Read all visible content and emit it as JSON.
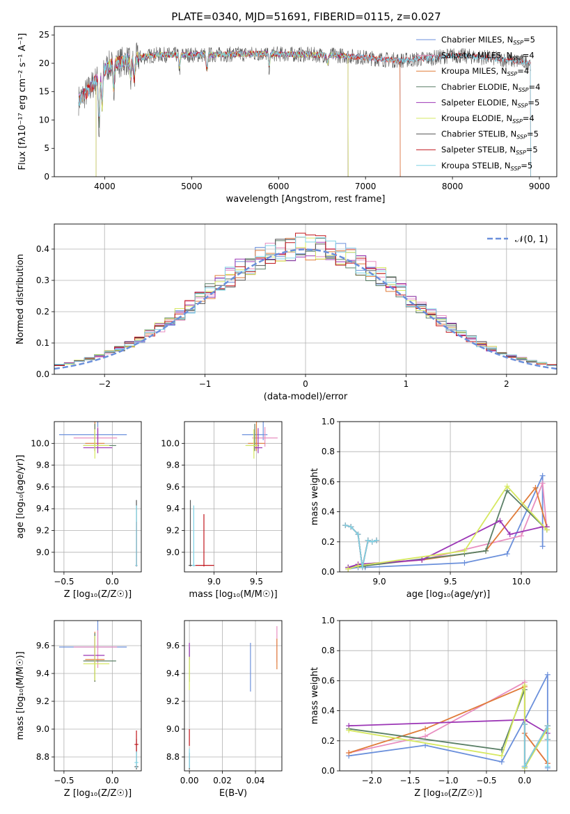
{
  "title": "PLATE=0340, MJD=51691, FIBERID=0115, z=0.027",
  "colors": [
    "#6a8fdb",
    "#e88ec0",
    "#e07b39",
    "#5a7f66",
    "#9b35b5",
    "#d6e860",
    "#555555",
    "#c0141a",
    "#7fd3e6"
  ],
  "chart_data": [
    {
      "type": "line",
      "name": "spectrum",
      "xlabel": "wavelength [Angstrom, rest frame]",
      "ylabel": "Flux [fλ10⁻¹⁷ erg cm⁻² s⁻¹ A⁻¹]",
      "xlim": [
        3420,
        9200
      ],
      "ylim": [
        0,
        26.5
      ],
      "xticks": [
        4000,
        5000,
        6000,
        7000,
        8000,
        9000
      ],
      "yticks": [
        0,
        5,
        10,
        15,
        20,
        25
      ],
      "legend_position": "top-right",
      "legend": [
        {
          "name": "Chabrier MILES",
          "n": "5"
        },
        {
          "name": "Salpeter MILES",
          "n": "4"
        },
        {
          "name": "Kroupa MILES",
          "n": "4"
        },
        {
          "name": "Chabrier ELODIE",
          "n": "4"
        },
        {
          "name": "Salpeter ELODIE",
          "n": "5"
        },
        {
          "name": "Kroupa ELODIE",
          "n": "4"
        },
        {
          "name": "Chabrier STELIB",
          "n": "5"
        },
        {
          "name": "Salpeter STELIB",
          "n": "5"
        },
        {
          "name": "Kroupa STELIB",
          "n": "5"
        }
      ],
      "spectrum_continuum": {
        "x": [
          3700,
          3800,
          3900,
          4000,
          4100,
          4200,
          4400,
          4600,
          4800,
          5000,
          5200,
          5500,
          5800,
          6100,
          6400,
          6700,
          7000,
          7200,
          7400,
          7600,
          7800,
          8000,
          8400,
          8800,
          9000
        ],
        "y": [
          13.5,
          15.0,
          17.0,
          19.0,
          20.0,
          20.3,
          21.0,
          21.5,
          21.5,
          21.5,
          21.5,
          21.6,
          21.7,
          21.6,
          21.5,
          21.4,
          21.0,
          20.7,
          20.5,
          20.7,
          21.0,
          21.4,
          21.0,
          20.3,
          19.8
        ]
      },
      "model_coverage": {
        "MILES_end": 7400,
        "ELODIE_start": 3900,
        "ELODIE_end": 6800,
        "STELIB_end": 8900
      },
      "absorption_features": [
        {
          "x": 3935,
          "depth": 8.0
        },
        {
          "x": 3970,
          "depth": 6.0
        },
        {
          "x": 4102,
          "depth": 4.0
        },
        {
          "x": 4300,
          "depth": 3.0
        },
        {
          "x": 4340,
          "depth": 3.5
        },
        {
          "x": 4861,
          "depth": 2.0
        },
        {
          "x": 5175,
          "depth": 2.5
        },
        {
          "x": 5893,
          "depth": 2.0
        },
        {
          "x": 6563,
          "depth": 1.5
        }
      ]
    },
    {
      "type": "line",
      "name": "residual_histogram",
      "xlabel": "(data-model)/error",
      "ylabel": "Normed distribution",
      "xlim": [
        -2.5,
        2.5
      ],
      "ylim": [
        0,
        0.48
      ],
      "xticks": [
        -2,
        -1,
        0,
        1,
        2
      ],
      "yticks": [
        0.0,
        0.1,
        0.2,
        0.3,
        0.4
      ],
      "legend_position": "top-right",
      "legend": [
        "𝒩(0, 1)"
      ],
      "bin_width": 0.1,
      "bin_start": -2.5,
      "note_series_values_from_model": "normal"
    },
    {
      "type": "scatter",
      "name": "age_vs_Z",
      "xlabel": "Z [log₁₀(Z/Z☉)]",
      "ylabel": "age  [log₁₀(age/yr)]",
      "xlim": [
        -0.6,
        0.3
      ],
      "ylim": [
        8.82,
        10.2
      ],
      "xticks": [
        -0.5,
        0.0
      ],
      "yticks": [
        9.0,
        9.2,
        9.4,
        9.6,
        9.8,
        10.0
      ],
      "points": [
        {
          "c": 0,
          "x": -0.15,
          "y": 10.08,
          "xe": [
            0.4,
            0.3
          ],
          "ye": [
            0.05,
            0.15
          ]
        },
        {
          "c": 1,
          "x": -0.15,
          "y": 10.05,
          "xe": [
            0.25,
            0.2
          ],
          "ye": [
            0.08,
            0.1
          ]
        },
        {
          "c": 2,
          "x": -0.18,
          "y": 10.0,
          "xe": [
            0.1,
            0.1
          ],
          "ye": [
            0.07,
            0.2
          ]
        },
        {
          "c": 3,
          "x": -0.18,
          "y": 9.98,
          "xe": [
            0.12,
            0.22
          ],
          "ye": [
            0.05,
            0.2
          ]
        },
        {
          "c": 4,
          "x": -0.15,
          "y": 9.96,
          "xe": [
            0.15,
            0.15
          ],
          "ye": [
            0.05,
            0.18
          ]
        },
        {
          "c": 5,
          "x": -0.18,
          "y": 9.98,
          "xe": [
            0.12,
            0.15
          ],
          "ye": [
            0.12,
            0.15
          ]
        },
        {
          "c": 6,
          "x": 0.25,
          "y": 8.88,
          "xe": [
            0.01,
            0.01
          ],
          "ye": [
            0.01,
            0.6
          ]
        },
        {
          "c": 7,
          "x": 0.25,
          "y": 8.88,
          "xe": [
            0.01,
            0.01
          ],
          "ye": [
            0.01,
            0.4
          ]
        },
        {
          "c": 8,
          "x": 0.25,
          "y": 8.88,
          "xe": [
            0.01,
            0.01
          ],
          "ye": [
            0.01,
            0.55
          ]
        }
      ]
    },
    {
      "type": "scatter",
      "name": "age_vs_mass",
      "xlabel": "mass [log₁₀(M/M☉)]",
      "ylabel": "",
      "xlim": [
        8.65,
        9.8
      ],
      "ylim": [
        8.82,
        10.2
      ],
      "xticks": [
        9.0,
        9.5
      ],
      "yticks": [
        9.0,
        9.2,
        9.4,
        9.6,
        9.8,
        10.0
      ],
      "points": [
        {
          "c": 0,
          "x": 9.58,
          "y": 10.08,
          "xe": [
            0.25,
            0.05
          ],
          "ye": [
            0.05,
            0.15
          ]
        },
        {
          "c": 1,
          "x": 9.6,
          "y": 10.05,
          "xe": [
            0.15,
            0.15
          ],
          "ye": [
            0.08,
            0.1
          ]
        },
        {
          "c": 2,
          "x": 9.5,
          "y": 10.0,
          "xe": [
            0.1,
            0.1
          ],
          "ye": [
            0.07,
            0.2
          ]
        },
        {
          "c": 3,
          "x": 9.48,
          "y": 9.98,
          "xe": [
            0.1,
            0.05
          ],
          "ye": [
            0.05,
            0.2
          ]
        },
        {
          "c": 4,
          "x": 9.52,
          "y": 9.96,
          "xe": [
            0.05,
            0.05
          ],
          "ye": [
            0.05,
            0.18
          ]
        },
        {
          "c": 5,
          "x": 9.47,
          "y": 9.98,
          "xe": [
            0.1,
            0.05
          ],
          "ye": [
            0.12,
            0.15
          ]
        },
        {
          "c": 6,
          "x": 8.72,
          "y": 8.88,
          "xe": [
            0.02,
            0.02
          ],
          "ye": [
            0.01,
            0.6
          ]
        },
        {
          "c": 7,
          "x": 8.88,
          "y": 8.88,
          "xe": [
            0.12,
            0.12
          ],
          "ye": [
            0.01,
            0.47
          ]
        },
        {
          "c": 8,
          "x": 8.76,
          "y": 8.88,
          "xe": [
            0.02,
            0.02
          ],
          "ye": [
            0.01,
            0.55
          ]
        }
      ]
    },
    {
      "type": "line",
      "name": "massweight_vs_age",
      "xlabel": "age  [log₁₀(age/yr)]",
      "ylabel": "mass weight",
      "xlim": [
        8.72,
        10.25
      ],
      "ylim": [
        0,
        1
      ],
      "xticks": [
        9.0,
        9.5,
        10.0
      ],
      "yticks": [
        0.0,
        0.2,
        0.4,
        0.6,
        0.8,
        1.0
      ],
      "series": [
        {
          "c": 0,
          "x": [
            8.78,
            8.85,
            8.9,
            9.6,
            9.9,
            10.15,
            10.15
          ],
          "y": [
            0.02,
            0.03,
            0.03,
            0.06,
            0.12,
            0.64,
            0.17
          ]
        },
        {
          "c": 1,
          "x": [
            8.78,
            8.85,
            9.3,
            10.0,
            10.15,
            10.18
          ],
          "y": [
            0.03,
            0.04,
            0.08,
            0.24,
            0.59,
            0.28
          ]
        },
        {
          "c": 2,
          "x": [
            8.78,
            8.85,
            9.3,
            9.75,
            10.1,
            10.18
          ],
          "y": [
            0.02,
            0.05,
            0.08,
            0.14,
            0.56,
            0.3
          ]
        },
        {
          "c": 3,
          "x": [
            8.78,
            8.9,
            9.6,
            9.75,
            9.9,
            10.18
          ],
          "y": [
            0.03,
            0.04,
            0.12,
            0.14,
            0.54,
            0.28
          ]
        },
        {
          "c": 4,
          "x": [
            8.78,
            8.85,
            9.3,
            9.85,
            9.92,
            10.15,
            10.18
          ],
          "y": [
            0.03,
            0.05,
            0.08,
            0.34,
            0.25,
            0.3,
            0.3
          ]
        },
        {
          "c": 5,
          "x": [
            8.78,
            8.85,
            9.6,
            9.9,
            10.18
          ],
          "y": [
            0.02,
            0.04,
            0.14,
            0.57,
            0.28
          ]
        },
        {
          "c": 6,
          "x": [
            8.76,
            8.8,
            8.85,
            8.88,
            8.92,
            8.95,
            8.98
          ],
          "y": [
            0.31,
            0.3,
            0.25,
            0.03,
            0.21,
            0.2,
            0.21
          ]
        },
        {
          "c": 7,
          "x": [
            8.76,
            8.8,
            8.85,
            8.88,
            8.92,
            8.95,
            8.98
          ],
          "y": [
            0.31,
            0.3,
            0.25,
            0.03,
            0.21,
            0.2,
            0.21
          ]
        },
        {
          "c": 8,
          "x": [
            8.76,
            8.8,
            8.85,
            8.88,
            8.92,
            8.95,
            8.98
          ],
          "y": [
            0.31,
            0.3,
            0.25,
            0.03,
            0.21,
            0.2,
            0.21
          ]
        }
      ]
    },
    {
      "type": "scatter",
      "name": "mass_vs_Z",
      "xlabel": "Z [log₁₀(Z/Z☉)]",
      "ylabel": "mass [log₁₀(M/M☉)]",
      "xlim": [
        -0.6,
        0.3
      ],
      "ylim": [
        8.7,
        9.78
      ],
      "xticks": [
        -0.5,
        0.0
      ],
      "yticks": [
        8.8,
        9.0,
        9.2,
        9.4,
        9.6
      ],
      "points": [
        {
          "c": 0,
          "x": -0.15,
          "y": 9.59,
          "xe": [
            0.4,
            0.3
          ],
          "ye": [
            0.02,
            0.32
          ]
        },
        {
          "c": 1,
          "x": -0.15,
          "y": 9.59,
          "xe": [
            0.25,
            0.2
          ],
          "ye": [
            0.15,
            0.12
          ]
        },
        {
          "c": 2,
          "x": -0.18,
          "y": 9.5,
          "xe": [
            0.1,
            0.1
          ],
          "ye": [
            0.16,
            0.2
          ]
        },
        {
          "c": 3,
          "x": -0.18,
          "y": 9.49,
          "xe": [
            0.12,
            0.22
          ],
          "ye": [
            0.15,
            0.2
          ]
        },
        {
          "c": 4,
          "x": -0.18,
          "y": 9.53,
          "xe": [
            0.12,
            0.1
          ],
          "ye": [
            0.06,
            0.12
          ]
        },
        {
          "c": 5,
          "x": -0.18,
          "y": 9.47,
          "xe": [
            0.12,
            0.15
          ],
          "ye": [
            0.12,
            0.2
          ]
        },
        {
          "c": 6,
          "x": 0.25,
          "y": 8.73,
          "xe": [
            0.02,
            0.02
          ],
          "ye": [
            0.02,
            0.2
          ]
        },
        {
          "c": 7,
          "x": 0.25,
          "y": 8.89,
          "xe": [
            0.02,
            0.02
          ],
          "ye": [
            0.06,
            0.1
          ]
        },
        {
          "c": 8,
          "x": 0.25,
          "y": 8.76,
          "xe": [
            0.02,
            0.02
          ],
          "ye": [
            0.04,
            0.08
          ]
        }
      ]
    },
    {
      "type": "scatter",
      "name": "mass_vs_EBV",
      "xlabel": "E(B-V)",
      "ylabel": "",
      "xlim": [
        -0.003,
        0.056
      ],
      "ylim": [
        8.7,
        9.78
      ],
      "xticks": [
        0.0,
        0.02,
        0.04
      ],
      "yticks": [
        8.8,
        9.0,
        9.2,
        9.4,
        9.6
      ],
      "points": [
        {
          "c": 0,
          "x": 0.037,
          "y": 9.45,
          "xe": [
            0,
            0
          ],
          "ye": [
            0.18,
            0.17
          ]
        },
        {
          "c": 1,
          "x": 0.053,
          "y": 9.6,
          "xe": [
            0,
            0
          ],
          "ye": [
            0.12,
            0.14
          ]
        },
        {
          "c": 2,
          "x": 0.053,
          "y": 9.55,
          "xe": [
            0,
            0
          ],
          "ye": [
            0.12,
            0.1
          ]
        },
        {
          "c": 3,
          "x": 0.0,
          "y": 9.49,
          "xe": [
            0,
            0
          ],
          "ye": [
            0.15,
            0.1
          ]
        },
        {
          "c": 4,
          "x": 0.0,
          "y": 9.55,
          "xe": [
            0,
            0
          ],
          "ye": [
            0.05,
            0.07
          ]
        },
        {
          "c": 5,
          "x": 0.0,
          "y": 9.4,
          "xe": [
            0,
            0
          ],
          "ye": [
            0.12,
            0.12
          ]
        },
        {
          "c": 6,
          "x": 0.0,
          "y": 8.73,
          "xe": [
            0,
            0
          ],
          "ye": [
            0.02,
            0.1
          ]
        },
        {
          "c": 7,
          "x": 0.0,
          "y": 8.94,
          "xe": [
            0,
            0
          ],
          "ye": [
            0.06,
            0.06
          ]
        },
        {
          "c": 8,
          "x": 0.0,
          "y": 8.8,
          "xe": [
            0,
            0
          ],
          "ye": [
            0.08,
            0.06
          ]
        }
      ]
    },
    {
      "type": "line",
      "name": "massweight_vs_Z",
      "xlabel": "Z [log₁₀(Z/Z☉)]",
      "ylabel": "mass weight",
      "xlim": [
        -2.42,
        0.42
      ],
      "ylim": [
        0,
        1
      ],
      "xticks": [
        -2.0,
        -1.5,
        -1.0,
        -0.5,
        0.0
      ],
      "yticks": [
        0.0,
        0.2,
        0.4,
        0.6,
        0.8,
        1.0
      ],
      "series": [
        {
          "c": 0,
          "x": [
            -2.3,
            -1.3,
            -0.3,
            0.0,
            0.3,
            0.3
          ],
          "y": [
            0.1,
            0.17,
            0.06,
            0.34,
            0.64,
            0.02
          ]
        },
        {
          "c": 1,
          "x": [
            -2.3,
            -1.3,
            0.0,
            0.0,
            0.3
          ],
          "y": [
            0.12,
            0.23,
            0.59,
            0.25,
            0.05
          ]
        },
        {
          "c": 2,
          "x": [
            -2.3,
            -1.3,
            0.0,
            0.0,
            0.3
          ],
          "y": [
            0.12,
            0.28,
            0.56,
            0.25,
            0.05
          ]
        },
        {
          "c": 3,
          "x": [
            -2.3,
            -0.3,
            0.0,
            0.0,
            0.3
          ],
          "y": [
            0.28,
            0.14,
            0.54,
            0.02,
            0.3
          ]
        },
        {
          "c": 4,
          "x": [
            -2.3,
            0.0,
            0.3
          ],
          "y": [
            0.3,
            0.34,
            0.25
          ]
        },
        {
          "c": 5,
          "x": [
            -2.3,
            -0.3,
            0.0,
            0.0,
            0.3
          ],
          "y": [
            0.27,
            0.1,
            0.57,
            0.02,
            0.28
          ]
        },
        {
          "c": 6,
          "x": [
            0.0,
            0.0,
            0.3,
            0.3
          ],
          "y": [
            0.31,
            0.03,
            0.3,
            0.21
          ]
        },
        {
          "c": 7,
          "x": [
            0.0,
            0.0,
            0.3,
            0.3
          ],
          "y": [
            0.31,
            0.03,
            0.3,
            0.21
          ]
        },
        {
          "c": 8,
          "x": [
            0.0,
            0.0,
            0.3,
            0.3,
            0.3
          ],
          "y": [
            0.31,
            0.03,
            0.3,
            0.21,
            0.03
          ]
        }
      ]
    }
  ]
}
